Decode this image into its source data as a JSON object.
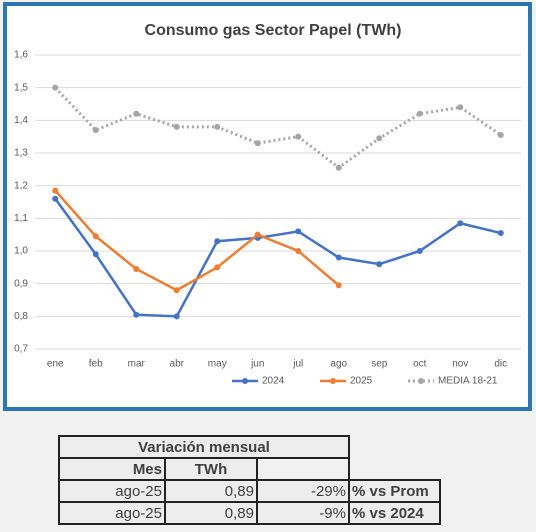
{
  "chart_data": {
    "type": "line",
    "title": "Consumo gas Sector Papel (TWh)",
    "categories": [
      "ene",
      "feb",
      "mar",
      "abr",
      "may",
      "jun",
      "jul",
      "ago",
      "sep",
      "oct",
      "nov",
      "dic"
    ],
    "series": [
      {
        "name": "2024",
        "color": "#4472c4",
        "values": [
          1.16,
          0.99,
          0.805,
          0.8,
          1.03,
          1.04,
          1.06,
          0.98,
          0.96,
          1.0,
          1.085,
          1.055
        ]
      },
      {
        "name": "2025",
        "color": "#ed7d31",
        "values": [
          1.185,
          1.045,
          0.945,
          0.88,
          0.95,
          1.05,
          1.0,
          0.895,
          null,
          null,
          null,
          null
        ]
      },
      {
        "name": "MEDIA 18-21",
        "color": "#a5a5a5",
        "dotted": true,
        "values": [
          1.5,
          1.37,
          1.42,
          1.38,
          1.38,
          1.33,
          1.35,
          1.255,
          1.345,
          1.42,
          1.44,
          1.355
        ]
      }
    ],
    "ylim": [
      0.7,
      1.6
    ],
    "yticks": [
      {
        "value": 0.7,
        "label": "0,7"
      },
      {
        "value": 0.8,
        "label": "0,8"
      },
      {
        "value": 0.9,
        "label": "0,9"
      },
      {
        "value": 1.0,
        "label": "1,0"
      },
      {
        "value": 1.1,
        "label": "1,1"
      },
      {
        "value": 1.2,
        "label": "1,2"
      },
      {
        "value": 1.3,
        "label": "1,3"
      },
      {
        "value": 1.4,
        "label": "1,4"
      },
      {
        "value": 1.5,
        "label": "1,5"
      },
      {
        "value": 1.6,
        "label": "1,6"
      }
    ],
    "grid": true,
    "legend": "bottom"
  },
  "table": {
    "title": "Variación mensual",
    "header": [
      "Mes",
      "TWh"
    ],
    "rows": [
      [
        "ago-25",
        "0,89",
        "-29%",
        "% vs Prom"
      ],
      [
        "ago-25",
        "0,89",
        "-9%",
        "% vs 2024"
      ]
    ]
  }
}
